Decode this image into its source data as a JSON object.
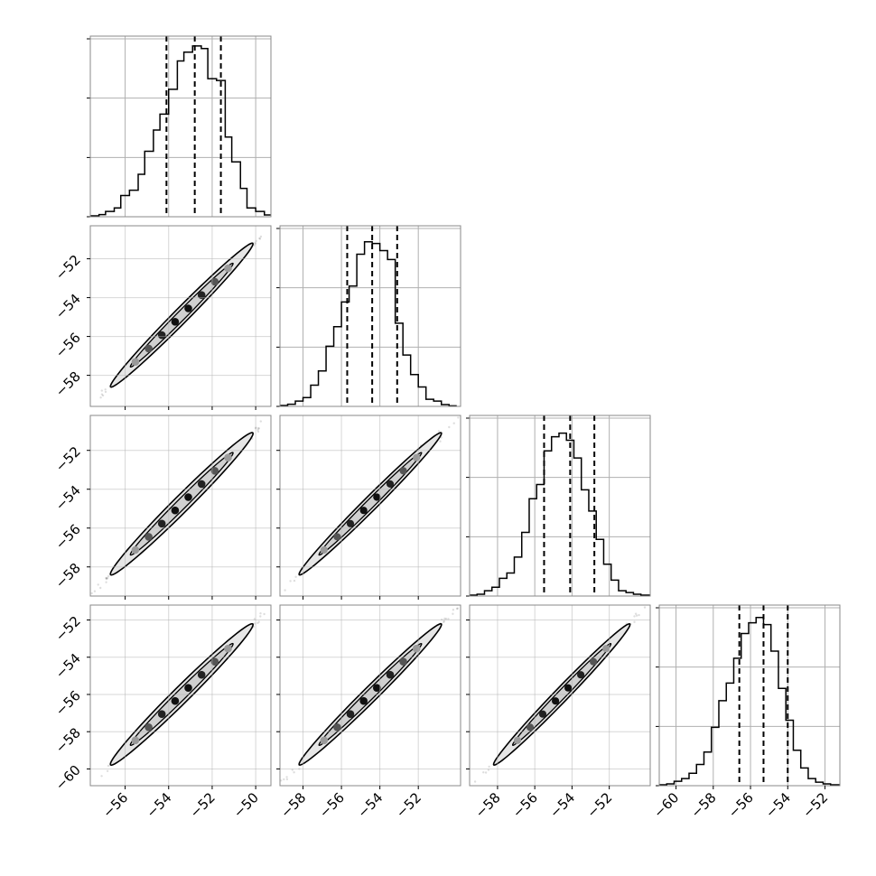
{
  "chart_data": {
    "type": "corner",
    "title": "",
    "n_params": 4,
    "grid": true,
    "quantile_lines": "dashed",
    "panels": {
      "diagonal": [
        {
          "param_index": 0,
          "type": "histogram",
          "x_range": [
            -57.6,
            -49.3
          ],
          "hist_max": 1.0,
          "y_grid_fracs": [
            0,
            0.333,
            0.667,
            1.0
          ],
          "bins": [
            -57.6,
            -57.2,
            -56.9,
            -56.5,
            -56.2,
            -55.8,
            -55.4,
            -55.1,
            -54.7,
            -54.4,
            -54.0,
            -53.6,
            -53.3,
            -52.9,
            -52.5,
            -52.2,
            -51.8,
            -51.4,
            -51.1,
            -50.7,
            -50.4,
            -50.0,
            -49.6,
            -49.3
          ],
          "counts": [
            0.005,
            0.012,
            0.03,
            0.05,
            0.12,
            0.15,
            0.24,
            0.37,
            0.49,
            0.58,
            0.72,
            0.88,
            0.93,
            0.965,
            0.95,
            0.78,
            0.77,
            0.45,
            0.31,
            0.16,
            0.05,
            0.03,
            0.01
          ],
          "quantiles": [
            -54.1,
            -52.8,
            -51.6
          ]
        },
        {
          "param_index": 1,
          "type": "histogram",
          "x_range": [
            -59.2,
            -49.8
          ],
          "hist_max": 1.0,
          "y_grid_fracs": [
            0,
            0.333,
            0.667,
            1.0
          ],
          "bins": [
            -59.2,
            -58.8,
            -58.4,
            -58.0,
            -57.6,
            -57.2,
            -56.8,
            -56.4,
            -56.0,
            -55.6,
            -55.2,
            -54.8,
            -54.4,
            -54.0,
            -53.6,
            -53.2,
            -52.8,
            -52.4,
            -52.0,
            -51.6,
            -51.2,
            -50.8,
            -50.4,
            -50.0
          ],
          "counts": [
            0.005,
            0.012,
            0.03,
            0.05,
            0.12,
            0.2,
            0.34,
            0.45,
            0.59,
            0.68,
            0.86,
            0.93,
            0.92,
            0.88,
            0.83,
            0.47,
            0.29,
            0.18,
            0.11,
            0.04,
            0.03,
            0.01,
            0.003
          ],
          "quantiles": [
            -55.7,
            -54.4,
            -53.1
          ]
        },
        {
          "param_index": 2,
          "type": "histogram",
          "x_range": [
            -59.5,
            -49.8
          ],
          "hist_max": 1.0,
          "y_grid_fracs": [
            0,
            0.333,
            0.667,
            1.0
          ],
          "bins": [
            -59.5,
            -59.1,
            -58.7,
            -58.3,
            -57.9,
            -57.5,
            -57.1,
            -56.7,
            -56.3,
            -55.9,
            -55.5,
            -55.1,
            -54.7,
            -54.3,
            -53.9,
            -53.5,
            -53.1,
            -52.7,
            -52.3,
            -51.9,
            -51.5,
            -51.1,
            -50.7,
            -50.3,
            -49.8
          ],
          "counts": [
            0.005,
            0.01,
            0.03,
            0.05,
            0.1,
            0.13,
            0.22,
            0.36,
            0.55,
            0.63,
            0.82,
            0.9,
            0.92,
            0.88,
            0.78,
            0.6,
            0.48,
            0.32,
            0.18,
            0.09,
            0.03,
            0.02,
            0.01,
            0.005
          ],
          "quantiles": [
            -55.5,
            -54.1,
            -52.8
          ]
        },
        {
          "param_index": 3,
          "type": "histogram",
          "x_range": [
            -60.9,
            -51.2
          ],
          "hist_max": 1.0,
          "y_grid_fracs": [
            0,
            0.333,
            0.667,
            1.0
          ],
          "bins": [
            -60.9,
            -60.5,
            -60.1,
            -59.7,
            -59.3,
            -58.9,
            -58.5,
            -58.1,
            -57.7,
            -57.3,
            -56.9,
            -56.5,
            -56.1,
            -55.7,
            -55.3,
            -54.9,
            -54.5,
            -54.1,
            -53.7,
            -53.3,
            -52.9,
            -52.5,
            -52.1,
            -51.7,
            -51.2
          ],
          "counts": [
            0.005,
            0.01,
            0.025,
            0.04,
            0.07,
            0.12,
            0.19,
            0.33,
            0.48,
            0.58,
            0.72,
            0.86,
            0.92,
            0.95,
            0.91,
            0.76,
            0.55,
            0.37,
            0.2,
            0.1,
            0.04,
            0.02,
            0.01,
            0.005
          ],
          "quantiles": [
            -56.6,
            -55.3,
            -54.0
          ]
        }
      ],
      "off_diagonal": [
        {
          "row": 1,
          "col": 0,
          "x_range": [
            -57.6,
            -49.3
          ],
          "y_range": [
            -59.6,
            -50.3
          ],
          "trend_start": [
            -57.2,
            -59.2
          ],
          "trend_end": [
            -49.6,
            -50.6
          ],
          "width_factor": 0.9
        },
        {
          "row": 2,
          "col": 0,
          "x_range": [
            -57.6,
            -49.3
          ],
          "y_range": [
            -59.5,
            -50.2
          ],
          "trend_start": [
            -57.2,
            -59.0
          ],
          "trend_end": [
            -49.6,
            -50.5
          ],
          "width_factor": 1.0
        },
        {
          "row": 2,
          "col": 1,
          "x_range": [
            -59.2,
            -49.8
          ],
          "y_range": [
            -59.5,
            -50.2
          ],
          "trend_start": [
            -58.8,
            -59.0
          ],
          "trend_end": [
            -50.2,
            -50.5
          ],
          "width_factor": 0.85
        },
        {
          "row": 3,
          "col": 0,
          "x_range": [
            -57.6,
            -49.3
          ],
          "y_range": [
            -60.9,
            -51.2
          ],
          "trend_start": [
            -57.2,
            -60.4
          ],
          "trend_end": [
            -49.6,
            -51.6
          ],
          "width_factor": 1.0
        },
        {
          "row": 3,
          "col": 1,
          "x_range": [
            -59.2,
            -49.8
          ],
          "y_range": [
            -60.9,
            -51.2
          ],
          "trend_start": [
            -58.8,
            -60.4
          ],
          "trend_end": [
            -50.2,
            -51.6
          ],
          "width_factor": 0.9
        },
        {
          "row": 3,
          "col": 2,
          "x_range": [
            -59.5,
            -49.8
          ],
          "y_range": [
            -60.9,
            -51.2
          ],
          "trend_start": [
            -58.8,
            -60.4
          ],
          "trend_end": [
            -50.3,
            -51.6
          ],
          "width_factor": 0.85
        }
      ]
    },
    "axes": {
      "bottom_x_ticks": [
        {
          "col": 0,
          "ticks": [
            -56,
            -54,
            -52,
            -50
          ],
          "labels": [
            "−56",
            "−54",
            "−52",
            "−50"
          ]
        },
        {
          "col": 1,
          "ticks": [
            -58,
            -56,
            -54,
            -52
          ],
          "labels": [
            "−58",
            "−56",
            "−54",
            "−52"
          ]
        },
        {
          "col": 2,
          "ticks": [
            -58,
            -56,
            -54,
            -52
          ],
          "labels": [
            "−58",
            "−56",
            "−54",
            "−52"
          ]
        },
        {
          "col": 3,
          "ticks": [
            -60,
            -58,
            -56,
            -54,
            -52
          ],
          "labels": [
            "−60",
            "−58",
            "−56",
            "−54",
            "−52"
          ]
        }
      ],
      "left_y_ticks": [
        {
          "row": 1,
          "ticks": [
            -52,
            -54,
            -56,
            -58
          ],
          "labels": [
            "−52",
            "−54",
            "−56",
            "−58"
          ]
        },
        {
          "row": 2,
          "ticks": [
            -52,
            -54,
            -56,
            -58
          ],
          "labels": [
            "−52",
            "−54",
            "−56",
            "−58"
          ]
        },
        {
          "row": 3,
          "ticks": [
            -52,
            -54,
            -56,
            -58,
            -60
          ],
          "labels": [
            "−52",
            "−54",
            "−56",
            "−58",
            "−60"
          ]
        }
      ]
    },
    "colors": {
      "line": "#000000",
      "grid": "#b0b0b0",
      "spine": "#888888",
      "contour_fill": "#e6e6e6"
    }
  }
}
